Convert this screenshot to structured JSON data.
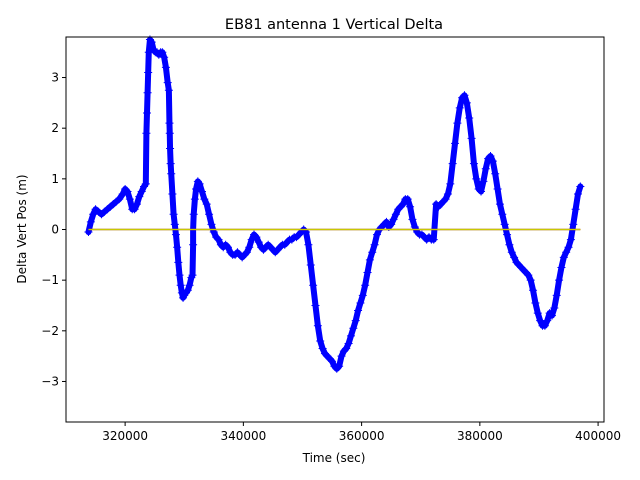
{
  "chart_data": {
    "type": "scatter",
    "title": "EB81 antenna 1 Vertical Delta",
    "xlabel": "Time (sec)",
    "ylabel": "Delta Vert Pos (m)",
    "xlim": [
      310000,
      401000
    ],
    "ylim": [
      -3.8,
      3.8
    ],
    "xticks": [
      320000,
      340000,
      360000,
      380000,
      400000
    ],
    "yticks": [
      -3,
      -2,
      -1,
      0,
      1,
      2,
      3
    ],
    "xtick_labels": [
      "320000",
      "340000",
      "360000",
      "380000",
      "400000"
    ],
    "ytick_labels": [
      "−3",
      "−2",
      "−1",
      "0",
      "1",
      "2",
      "3"
    ],
    "grid": false,
    "series": [
      {
        "marker": "+",
        "color": "#0000ff",
        "points": [
          [
            313800,
            -0.05
          ],
          [
            314200,
            0.15
          ],
          [
            314600,
            0.3
          ],
          [
            315000,
            0.4
          ],
          [
            315500,
            0.35
          ],
          [
            316000,
            0.3
          ],
          [
            316500,
            0.35
          ],
          [
            317000,
            0.4
          ],
          [
            317500,
            0.45
          ],
          [
            318000,
            0.5
          ],
          [
            318500,
            0.55
          ],
          [
            319000,
            0.6
          ],
          [
            319600,
            0.7
          ],
          [
            320000,
            0.8
          ],
          [
            320400,
            0.75
          ],
          [
            320800,
            0.6
          ],
          [
            321200,
            0.4
          ],
          [
            321600,
            0.4
          ],
          [
            322000,
            0.5
          ],
          [
            322400,
            0.65
          ],
          [
            322800,
            0.75
          ],
          [
            323200,
            0.85
          ],
          [
            323500,
            0.9
          ],
          [
            323600,
            1.9
          ],
          [
            323700,
            2.3
          ],
          [
            323800,
            2.7
          ],
          [
            323900,
            3.1
          ],
          [
            324000,
            3.5
          ],
          [
            324200,
            3.75
          ],
          [
            324500,
            3.7
          ],
          [
            324800,
            3.55
          ],
          [
            325100,
            3.5
          ],
          [
            325400,
            3.5
          ],
          [
            325700,
            3.45
          ],
          [
            326000,
            3.5
          ],
          [
            326300,
            3.5
          ],
          [
            326600,
            3.4
          ],
          [
            326900,
            3.2
          ],
          [
            327200,
            2.9
          ],
          [
            327400,
            2.75
          ],
          [
            327500,
            2.1
          ],
          [
            327550,
            1.9
          ],
          [
            327600,
            1.6
          ],
          [
            327700,
            1.3
          ],
          [
            327800,
            1.1
          ],
          [
            328000,
            0.7
          ],
          [
            328200,
            0.3
          ],
          [
            328400,
            0.1
          ],
          [
            328600,
            -0.1
          ],
          [
            328800,
            -0.35
          ],
          [
            329000,
            -0.65
          ],
          [
            329200,
            -0.9
          ],
          [
            329400,
            -1.1
          ],
          [
            329600,
            -1.25
          ],
          [
            329800,
            -1.35
          ],
          [
            330000,
            -1.3
          ],
          [
            330300,
            -1.25
          ],
          [
            330600,
            -1.2
          ],
          [
            330900,
            -1.1
          ],
          [
            331200,
            -0.95
          ],
          [
            331400,
            -0.9
          ],
          [
            331500,
            -0.3
          ],
          [
            331500,
            0.0
          ],
          [
            331600,
            0.3
          ],
          [
            331800,
            0.6
          ],
          [
            332000,
            0.8
          ],
          [
            332300,
            0.95
          ],
          [
            332600,
            0.9
          ],
          [
            333000,
            0.75
          ],
          [
            333400,
            0.6
          ],
          [
            333800,
            0.5
          ],
          [
            334200,
            0.3
          ],
          [
            334600,
            0.1
          ],
          [
            335000,
            -0.05
          ],
          [
            335400,
            -0.15
          ],
          [
            335800,
            -0.2
          ],
          [
            336200,
            -0.3
          ],
          [
            336600,
            -0.35
          ],
          [
            337000,
            -0.3
          ],
          [
            337400,
            -0.35
          ],
          [
            337800,
            -0.45
          ],
          [
            338200,
            -0.5
          ],
          [
            338600,
            -0.5
          ],
          [
            339000,
            -0.45
          ],
          [
            339400,
            -0.5
          ],
          [
            339800,
            -0.55
          ],
          [
            340200,
            -0.5
          ],
          [
            340600,
            -0.45
          ],
          [
            341000,
            -0.35
          ],
          [
            341400,
            -0.2
          ],
          [
            341800,
            -0.1
          ],
          [
            342200,
            -0.15
          ],
          [
            342600,
            -0.25
          ],
          [
            343000,
            -0.35
          ],
          [
            343400,
            -0.4
          ],
          [
            343800,
            -0.35
          ],
          [
            344200,
            -0.3
          ],
          [
            344600,
            -0.35
          ],
          [
            345000,
            -0.4
          ],
          [
            345400,
            -0.45
          ],
          [
            345800,
            -0.4
          ],
          [
            346200,
            -0.35
          ],
          [
            346600,
            -0.3
          ],
          [
            347000,
            -0.3
          ],
          [
            347400,
            -0.25
          ],
          [
            347800,
            -0.2
          ],
          [
            348200,
            -0.2
          ],
          [
            348600,
            -0.15
          ],
          [
            349000,
            -0.15
          ],
          [
            349400,
            -0.1
          ],
          [
            349800,
            -0.05
          ],
          [
            350200,
            0.0
          ],
          [
            350600,
            -0.05
          ],
          [
            351000,
            -0.3
          ],
          [
            351400,
            -0.7
          ],
          [
            351800,
            -1.1
          ],
          [
            352200,
            -1.5
          ],
          [
            352600,
            -1.9
          ],
          [
            353000,
            -2.2
          ],
          [
            353400,
            -2.35
          ],
          [
            353800,
            -2.45
          ],
          [
            354200,
            -2.5
          ],
          [
            354600,
            -2.55
          ],
          [
            355000,
            -2.6
          ],
          [
            355400,
            -2.7
          ],
          [
            355800,
            -2.75
          ],
          [
            356200,
            -2.7
          ],
          [
            356600,
            -2.5
          ],
          [
            357000,
            -2.4
          ],
          [
            357400,
            -2.35
          ],
          [
            357800,
            -2.25
          ],
          [
            358200,
            -2.1
          ],
          [
            358600,
            -1.95
          ],
          [
            359000,
            -1.8
          ],
          [
            359400,
            -1.6
          ],
          [
            359800,
            -1.45
          ],
          [
            360200,
            -1.3
          ],
          [
            360600,
            -1.1
          ],
          [
            361000,
            -0.85
          ],
          [
            361400,
            -0.6
          ],
          [
            361800,
            -0.45
          ],
          [
            362200,
            -0.3
          ],
          [
            362600,
            -0.1
          ],
          [
            363000,
            0.0
          ],
          [
            363400,
            0.05
          ],
          [
            363800,
            0.1
          ],
          [
            364200,
            0.15
          ],
          [
            364600,
            0.05
          ],
          [
            365000,
            0.1
          ],
          [
            365400,
            0.2
          ],
          [
            365800,
            0.3
          ],
          [
            366200,
            0.4
          ],
          [
            366600,
            0.45
          ],
          [
            367000,
            0.5
          ],
          [
            367400,
            0.6
          ],
          [
            367800,
            0.6
          ],
          [
            368200,
            0.45
          ],
          [
            368600,
            0.2
          ],
          [
            369000,
            0.05
          ],
          [
            369400,
            -0.05
          ],
          [
            369800,
            -0.1
          ],
          [
            370200,
            -0.1
          ],
          [
            370600,
            -0.15
          ],
          [
            371000,
            -0.2
          ],
          [
            371400,
            -0.15
          ],
          [
            371800,
            -0.2
          ],
          [
            372200,
            -0.2
          ],
          [
            372600,
            0.5
          ],
          [
            373000,
            0.45
          ],
          [
            373400,
            0.5
          ],
          [
            373800,
            0.55
          ],
          [
            374200,
            0.6
          ],
          [
            374600,
            0.7
          ],
          [
            375000,
            0.9
          ],
          [
            375400,
            1.3
          ],
          [
            375800,
            1.7
          ],
          [
            376200,
            2.1
          ],
          [
            376600,
            2.4
          ],
          [
            377000,
            2.6
          ],
          [
            377400,
            2.65
          ],
          [
            377800,
            2.5
          ],
          [
            378200,
            2.2
          ],
          [
            378600,
            1.8
          ],
          [
            379000,
            1.3
          ],
          [
            379400,
            1.0
          ],
          [
            379800,
            0.8
          ],
          [
            380200,
            0.75
          ],
          [
            380600,
            0.95
          ],
          [
            381000,
            1.2
          ],
          [
            381400,
            1.4
          ],
          [
            381800,
            1.45
          ],
          [
            382200,
            1.35
          ],
          [
            382600,
            1.1
          ],
          [
            383000,
            0.8
          ],
          [
            383400,
            0.5
          ],
          [
            383800,
            0.3
          ],
          [
            384200,
            0.1
          ],
          [
            384600,
            -0.1
          ],
          [
            385000,
            -0.3
          ],
          [
            385400,
            -0.45
          ],
          [
            385800,
            -0.55
          ],
          [
            386200,
            -0.65
          ],
          [
            386600,
            -0.7
          ],
          [
            387000,
            -0.75
          ],
          [
            387400,
            -0.8
          ],
          [
            387800,
            -0.85
          ],
          [
            388200,
            -0.9
          ],
          [
            388600,
            -1.0
          ],
          [
            389000,
            -1.2
          ],
          [
            389400,
            -1.45
          ],
          [
            389800,
            -1.65
          ],
          [
            390200,
            -1.8
          ],
          [
            390600,
            -1.9
          ],
          [
            391000,
            -1.9
          ],
          [
            391400,
            -1.8
          ],
          [
            391800,
            -1.65
          ],
          [
            392200,
            -1.7
          ],
          [
            392600,
            -1.55
          ],
          [
            393000,
            -1.3
          ],
          [
            393400,
            -1.0
          ],
          [
            393800,
            -0.75
          ],
          [
            394200,
            -0.55
          ],
          [
            394600,
            -0.45
          ],
          [
            395000,
            -0.35
          ],
          [
            395400,
            -0.2
          ],
          [
            395800,
            0.1
          ],
          [
            396200,
            0.4
          ],
          [
            396600,
            0.7
          ],
          [
            397000,
            0.85
          ]
        ]
      },
      {
        "type": "line",
        "color": "#008000",
        "points": [
          [
            313800,
            0.0
          ],
          [
            397000,
            0.0
          ]
        ]
      },
      {
        "type": "line",
        "color": "#ff0000",
        "points": [
          [
            313800,
            0.0
          ],
          [
            397000,
            0.0
          ]
        ]
      },
      {
        "type": "line",
        "color": "#c8c800",
        "points": [
          [
            313800,
            0.0
          ],
          [
            397000,
            0.0
          ]
        ]
      }
    ]
  }
}
